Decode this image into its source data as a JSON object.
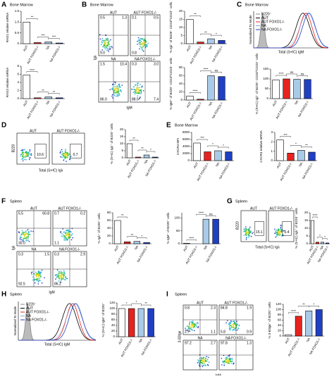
{
  "bar_colors": [
    "#ffffff",
    "#e8231f",
    "#a9cbe9",
    "#1f3fc4"
  ],
  "panels": [
    {
      "letter": "A",
      "tissue": "Bone Marrow",
      "bars": [
        {
          "ylabel": "RAG1 relative mRNA",
          "categories": [
            "AUT",
            "AUT FOXO1-/-",
            "NA",
            "NA FOXO1-/-"
          ],
          "values": [
            1.0,
            0.05,
            0.08,
            0.03
          ],
          "ylim": [
            0,
            1.5
          ],
          "yticks": [
            0,
            0.5,
            {
              "value": 1,
              "label": "1.0"
            },
            1.5
          ],
          "sig": [
            "**",
            "***",
            "***"
          ]
        },
        {
          "ylabel": "RAG2 relative mRNA",
          "categories": [
            "AUT",
            "AUT FOXO1-/-",
            "NA",
            "NA FOXO1-/-"
          ],
          "values": [
            5.8,
            0.2,
            0.4,
            0.2
          ],
          "ylim": [
            0,
            8
          ],
          "yticks": [
            0,
            2,
            4,
            6,
            8
          ],
          "sig": [
            "****",
            "**",
            "**"
          ]
        }
      ]
    },
    {
      "letter": "B",
      "tissue": "Bone Marrow",
      "flow_x": "IgM",
      "flow_y": "Igλ",
      "flows": [
        {
          "title": "AUT",
          "gates": [
            "0.5",
            "1.3",
            "9.0"
          ]
        },
        {
          "title": "AUT FOXO1-/-",
          "gates": [
            "0.1",
            "0.5",
            "0.8"
          ]
        },
        {
          "title": "NA",
          "gates": [
            "1.5",
            "10.4",
            "86.0"
          ]
        },
        {
          "title": "NA FOXO1-/-",
          "gates": [
            "0.3",
            "3.0",
            "88.5",
            "7.4"
          ]
        }
      ],
      "bars": [
        {
          "ylabel": "% Igλ⁺ of B220⁺ CD24ʰⁱCD23⁻ cells",
          "categories": [
            "AUT",
            "AUT FOXO1-/-",
            "NA",
            "NA FOXO1-/-"
          ],
          "values": [
            15,
            1,
            3,
            2
          ],
          "ylim": [
            0,
            20
          ],
          "yticks": [
            0,
            5,
            10,
            15,
            20
          ],
          "sig": [
            "**",
            "**",
            "*"
          ]
        },
        {
          "ylabel": "% IgM⁺ of B220⁺ CD24ʰⁱCD23⁻ cells",
          "categories": [
            "AUT",
            "AUT FOXO1-/-",
            "NA",
            "NA FOXO1-/-"
          ],
          "values": [
            10,
            2,
            60,
            58
          ],
          "ylim": [
            0,
            80
          ],
          "yticks": [
            0,
            20,
            40,
            60,
            80
          ],
          "sig": [
            "****",
            "****",
            "ns"
          ]
        }
      ]
    },
    {
      "letter": "C",
      "tissue": "Bone Marrow",
      "hist": {
        "xlabel": "Total (S+IC) IgM",
        "ylabel": "Normalized To Mode",
        "legend": [
          "B220⁻",
          "AUT",
          "AUT FOXO1-/-",
          "NA",
          "NA FOXO1-/-"
        ],
        "colors": [
          "#888888",
          "#000000",
          "#e8231f",
          "#7fa8e0",
          "#1f3fc4"
        ]
      },
      "bars": [
        {
          "ylabel": "% (S+IC) Igλ⁺ of B220⁺ CD24ʰⁱCD23⁻ cells",
          "categories": [
            "AUT",
            "AUT FOXO1-/-",
            "NA",
            "NA FOXO1-/-"
          ],
          "values": [
            95,
            100,
            98,
            97
          ],
          "ylim": [
            0,
            150
          ],
          "yticks": [
            0,
            50,
            100,
            150
          ],
          "sig": [
            "****",
            "ns",
            "ns"
          ]
        }
      ]
    },
    {
      "letter": "D",
      "flow_x": "Total (S+IC) Igλ",
      "flow_y": "B220",
      "flows": [
        {
          "title": "AUT",
          "gates": [
            "10.6"
          ]
        },
        {
          "title": "AUT FOXO1-/-",
          "gates": [
            "0.7"
          ]
        }
      ],
      "bars": [
        {
          "ylabel": "% (S+IC) Igλ⁺ of B220⁺ cells",
          "categories": [
            "AUT",
            "AUT FOXO1-/-",
            "NA",
            "NA FOXO1-/-"
          ],
          "values": [
            10,
            0.5,
            2,
            0.5
          ],
          "ylim": [
            0,
            20
          ],
          "yticks": [
            0,
            5,
            10,
            15,
            20
          ],
          "sig": [
            "**",
            "**",
            "*"
          ]
        }
      ]
    },
    {
      "letter": "E",
      "tissue": "Bone Marrow",
      "bars": [
        {
          "ylabel": "CXCR4 MFI",
          "categories": [
            "AUT",
            "AUT FOXO1-/-",
            "NA",
            "NA FOXO1-/-"
          ],
          "values": [
            5000,
            2500,
            2800,
            2500
          ],
          "ylim": [
            0,
            8000
          ],
          "yticks": [
            0,
            2000,
            4000,
            6000,
            8000
          ],
          "sig": [
            "***",
            "*",
            "*"
          ]
        },
        {
          "ylabel": "CXCR4 relative mRNA",
          "categories": [
            "AUT",
            "AUT FOXO1-/-",
            "NA",
            "NA FOXO1-/-"
          ],
          "values": [
            2.2,
            0.8,
            1.1,
            0.9
          ],
          "ylim": [
            0,
            3
          ],
          "yticks": [
            0,
            1,
            2,
            3
          ],
          "sig": [
            "***",
            "*",
            "**"
          ]
        }
      ]
    },
    {
      "letter": "F",
      "tissue": "Spleen",
      "flow_x": "IgM",
      "flow_y": "Igλ",
      "flows": [
        {
          "title": "AUT",
          "gates": [
            "5.5",
            "60.8",
            "30.0"
          ]
        },
        {
          "title": "AUT FOXO1-/-",
          "gates": [
            "0.7",
            "0.2",
            "1.1"
          ]
        },
        {
          "title": "NA",
          "gates": [
            "0.3",
            "1.5",
            "92.5"
          ]
        },
        {
          "title": "NA FOXO1-/-",
          "gates": [
            "0.3",
            "2.9",
            "86.2"
          ]
        }
      ],
      "bars": [
        {
          "ylabel": "% Igλ⁺ of B220⁺ cells",
          "categories": [
            "AUT",
            "AUT FOXO1-/-",
            "NA",
            "NA FOXO1-/-"
          ],
          "values": [
            60,
            5,
            6,
            3
          ],
          "ylim": [
            0,
            80
          ],
          "yticks": [
            0,
            20,
            40,
            60,
            80
          ],
          "sig": [
            "**",
            "**",
            "*"
          ]
        },
        {
          "ylabel": "% IgM⁺ of B220⁺ cells",
          "categories": [
            "AUT",
            "AUT FOXO1-/-",
            "NA",
            "NA FOXO1-/-"
          ],
          "values": [
            2,
            0,
            95,
            95
          ],
          "ylim": [
            0,
            120
          ],
          "yticks": [
            0,
            50,
            100
          ],
          "sig": [
            "****",
            "****",
            "ns"
          ]
        }
      ]
    },
    {
      "letter": "G",
      "tissue": "Spleen",
      "flow_x": "Total (S+IC) Igλ",
      "flow_y": "B220",
      "flows": [
        {
          "title": "AUT",
          "gates": [
            "15.1"
          ]
        },
        {
          "title": "AUT FOXO1-/-",
          "gates": [
            "0.4"
          ]
        }
      ],
      "bars": [
        {
          "ylabel": "% (S+IC) Igλ⁺ of B220⁺ cells",
          "categories": [
            "AUT",
            "AUT FOXO1-/-",
            "NA",
            "NA FOXO1-/-"
          ],
          "values": [
            15,
            1,
            1,
            0.5
          ],
          "ylim": [
            0,
            20
          ],
          "yticks": [
            0,
            5,
            10,
            15,
            20
          ],
          "sig": [
            "****",
            "*",
            "*"
          ]
        }
      ]
    },
    {
      "letter": "H",
      "tissue": "Spleen",
      "hist": {
        "xlabel": "Total (S+IC) IgM",
        "ylabel": "Normalized To Mode",
        "legend": [
          "B220⁻",
          "AUT",
          "AUT FOXO1-/-",
          "NA",
          "NA FOXO1-/-"
        ],
        "colors": [
          "#888888",
          "#000000",
          "#e8231f",
          "#7fa8e0",
          "#1f3fc4"
        ]
      },
      "bars": [
        {
          "ylabel": "% (S+IC) IgM⁺ of B220⁺",
          "categories": [
            "AUT",
            "AUT FOXO1-/-",
            "NA",
            "NA FOXO1-/-"
          ],
          "values": [
            100,
            100,
            100,
            100
          ],
          "ylim": [
            0,
            120
          ],
          "yticks": [
            0,
            20,
            40,
            60,
            80,
            100,
            120
          ],
          "sig": [
            "*",
            "*",
            "**"
          ]
        }
      ]
    },
    {
      "letter": "I",
      "tissue": "Spleen",
      "flow_x": "IgM",
      "flow_y": "3-83Igκ",
      "flows": [
        {
          "title": "AUT",
          "gates": [
            "0.8",
            "2.3",
            "2.7",
            "1.1"
          ]
        },
        {
          "title": "AUT FOXO1-/-",
          "gates": [
            "84.8",
            "1.9",
            "5.8",
            "0.9"
          ]
        },
        {
          "title": "NA",
          "gates": [
            "97.2",
            "2.7"
          ]
        },
        {
          "title": "NA FOXO1-/-",
          "gates": [
            "97.8",
            "1.3"
          ]
        }
      ],
      "bars": [
        {
          "ylabel": "% 3-83Igκ⁺ of B220⁺ cells",
          "categories": [
            "AUT",
            "AUT FOXO1-/-",
            "NA",
            "NA FOXO1-/-"
          ],
          "values": [
            5,
            75,
            95,
            100
          ],
          "ylim": [
            0,
            120
          ],
          "yticks": [
            0,
            20,
            40,
            60,
            80,
            100,
            120
          ],
          "sig": [
            "****",
            "**",
            "*"
          ]
        }
      ]
    }
  ]
}
